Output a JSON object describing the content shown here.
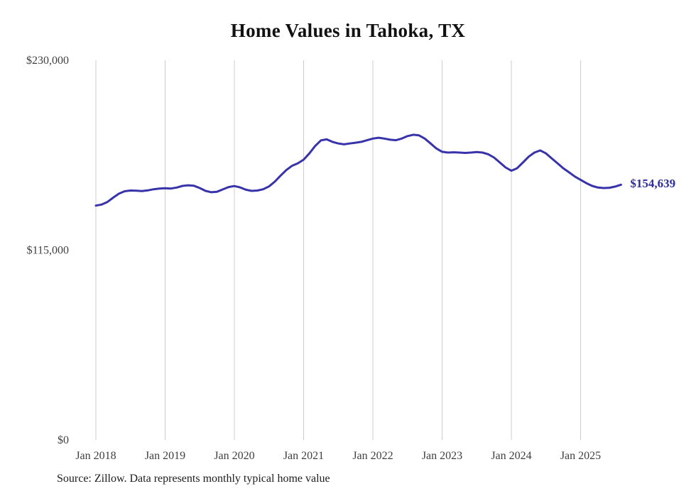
{
  "chart": {
    "title": "Home Values in Tahoka, TX",
    "end_label": "$154,639",
    "source": "Source: Zillow. Data represents monthly typical home value"
  },
  "chart_data": {
    "type": "line",
    "title": "Home Values in Tahoka, TX",
    "xlabel": "",
    "ylabel": "",
    "ylim": [
      0,
      230000
    ],
    "grid": "vertical-only",
    "legend": "none",
    "yticks": [
      {
        "value": 0,
        "label": "$0"
      },
      {
        "value": 115000,
        "label": "$115,000"
      },
      {
        "value": 230000,
        "label": "$230,000"
      }
    ],
    "xticks": [
      {
        "month_index": 0,
        "label": "Jan 2018"
      },
      {
        "month_index": 12,
        "label": "Jan 2019"
      },
      {
        "month_index": 24,
        "label": "Jan 2020"
      },
      {
        "month_index": 36,
        "label": "Jan 2021"
      },
      {
        "month_index": 48,
        "label": "Jan 2022"
      },
      {
        "month_index": 60,
        "label": "Jan 2023"
      },
      {
        "month_index": 72,
        "label": "Jan 2024"
      },
      {
        "month_index": 84,
        "label": "Jan 2025"
      }
    ],
    "x": [
      "2018-01",
      "2018-02",
      "2018-03",
      "2018-04",
      "2018-05",
      "2018-06",
      "2018-07",
      "2018-08",
      "2018-09",
      "2018-10",
      "2018-11",
      "2018-12",
      "2019-01",
      "2019-02",
      "2019-03",
      "2019-04",
      "2019-05",
      "2019-06",
      "2019-07",
      "2019-08",
      "2019-09",
      "2019-10",
      "2019-11",
      "2019-12",
      "2020-01",
      "2020-02",
      "2020-03",
      "2020-04",
      "2020-05",
      "2020-06",
      "2020-07",
      "2020-08",
      "2020-09",
      "2020-10",
      "2020-11",
      "2020-12",
      "2021-01",
      "2021-02",
      "2021-03",
      "2021-04",
      "2021-05",
      "2021-06",
      "2021-07",
      "2021-08",
      "2021-09",
      "2021-10",
      "2021-11",
      "2021-12",
      "2022-01",
      "2022-02",
      "2022-03",
      "2022-04",
      "2022-05",
      "2022-06",
      "2022-07",
      "2022-08",
      "2022-09",
      "2022-10",
      "2022-11",
      "2022-12",
      "2023-01",
      "2023-02",
      "2023-03",
      "2023-04",
      "2023-05",
      "2023-06",
      "2023-07",
      "2023-08",
      "2023-09",
      "2023-10",
      "2023-11",
      "2023-12",
      "2024-01",
      "2024-02",
      "2024-03",
      "2024-04",
      "2024-05",
      "2024-06",
      "2024-07",
      "2024-08",
      "2024-09",
      "2024-10",
      "2024-11",
      "2024-12",
      "2025-01",
      "2025-02",
      "2025-03",
      "2025-04",
      "2025-05",
      "2025-06",
      "2025-07",
      "2025-08"
    ],
    "series": [
      {
        "name": "Typical home value",
        "values": [
          142000,
          142600,
          144200,
          146800,
          149200,
          150700,
          151100,
          151000,
          150800,
          151200,
          151900,
          152300,
          152500,
          152300,
          152900,
          153900,
          154300,
          154000,
          152600,
          150900,
          150100,
          150400,
          151800,
          153200,
          153800,
          153000,
          151600,
          150900,
          151100,
          151900,
          153600,
          156500,
          160100,
          163500,
          166100,
          167600,
          169800,
          173600,
          178100,
          181500,
          182100,
          180600,
          179600,
          179100,
          179600,
          180100,
          180600,
          181600,
          182600,
          183100,
          182600,
          181900,
          181600,
          182600,
          184100,
          184900,
          184500,
          182600,
          179600,
          176600,
          174600,
          174100,
          174300,
          174100,
          173900,
          174100,
          174400,
          174100,
          173100,
          171100,
          168100,
          165100,
          163100,
          164600,
          168100,
          171600,
          174100,
          175400,
          173600,
          170600,
          167600,
          164600,
          162100,
          159600,
          157600,
          155600,
          153900,
          152900,
          152600,
          152800,
          153500,
          154639
        ]
      }
    ],
    "annotation": {
      "text": "$154,639",
      "position": "end-of-line"
    },
    "style": {
      "line_color": "#3833aa",
      "grid_color": "#cccccc",
      "axis_text_color": "#3f3f3f",
      "annotation_color": "#2d2d9e",
      "line_width": 3
    }
  }
}
